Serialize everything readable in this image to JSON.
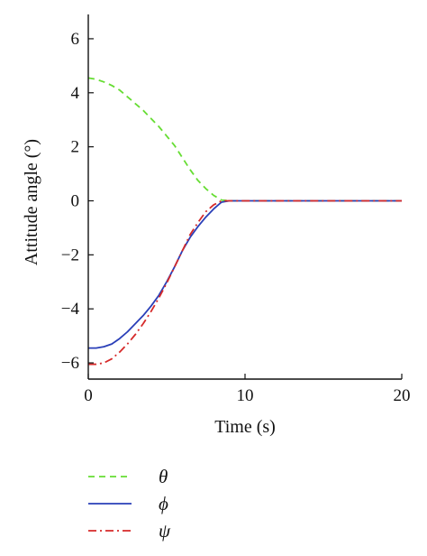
{
  "chart_data": {
    "type": "line",
    "title": "",
    "xlabel": "Time (s)",
    "ylabel": "Attitude angle (°)",
    "xlim": [
      0,
      20
    ],
    "ylim": [
      -6.6,
      6.9
    ],
    "xticks": [
      0,
      10,
      20
    ],
    "yticks": [
      -6,
      -4,
      -2,
      0,
      2,
      4,
      6
    ],
    "xtick_labels": [
      "0",
      "10",
      "20"
    ],
    "ytick_labels": [
      "−6",
      "−4",
      "−2",
      "0",
      "2",
      "4",
      "6"
    ],
    "grid": false,
    "legend_placement": "below",
    "series": [
      {
        "name": "θ",
        "color": "#66dd33",
        "dash": "dashed",
        "x": [
          0,
          0.5,
          1.0,
          1.5,
          2.0,
          2.5,
          3.0,
          3.5,
          4.0,
          4.5,
          5.0,
          5.5,
          6.0,
          6.5,
          7.0,
          7.5,
          8.0,
          8.5,
          9.0,
          10,
          12,
          14,
          16,
          18,
          20
        ],
        "y": [
          4.55,
          4.5,
          4.4,
          4.27,
          4.1,
          3.85,
          3.6,
          3.35,
          3.05,
          2.75,
          2.4,
          2.05,
          1.6,
          1.15,
          0.75,
          0.45,
          0.2,
          0.03,
          0.0,
          0.0,
          0.0,
          0.0,
          0.0,
          0.0,
          0.0
        ]
      },
      {
        "name": "ϕ",
        "color": "#2a3fb8",
        "dash": "solid",
        "x": [
          0,
          0.5,
          1.0,
          1.5,
          2.0,
          2.5,
          3.0,
          3.5,
          4.0,
          4.5,
          5.0,
          5.5,
          6.0,
          6.5,
          7.0,
          7.5,
          8.0,
          8.5,
          9.0,
          10,
          12,
          14,
          16,
          18,
          20
        ],
        "y": [
          -5.45,
          -5.45,
          -5.4,
          -5.3,
          -5.1,
          -4.85,
          -4.55,
          -4.25,
          -3.9,
          -3.5,
          -3.0,
          -2.45,
          -1.85,
          -1.35,
          -0.95,
          -0.6,
          -0.3,
          -0.05,
          0.0,
          0.0,
          0.0,
          0.0,
          0.0,
          0.0,
          0.0
        ]
      },
      {
        "name": "ψ",
        "color": "#d62a2a",
        "dash": "dashdot",
        "x": [
          0,
          0.5,
          1.0,
          1.5,
          2.0,
          2.5,
          3.0,
          3.5,
          4.0,
          4.5,
          5.0,
          5.5,
          6.0,
          6.5,
          7.0,
          7.5,
          8.0,
          8.5,
          9.0,
          10,
          12,
          14,
          16,
          18,
          20
        ],
        "y": [
          -6.05,
          -6.05,
          -6.0,
          -5.85,
          -5.6,
          -5.3,
          -4.95,
          -4.55,
          -4.1,
          -3.6,
          -3.05,
          -2.45,
          -1.85,
          -1.25,
          -0.8,
          -0.4,
          -0.15,
          0.0,
          0.0,
          0.0,
          0.0,
          0.0,
          0.0,
          0.0,
          0.0
        ]
      }
    ]
  }
}
